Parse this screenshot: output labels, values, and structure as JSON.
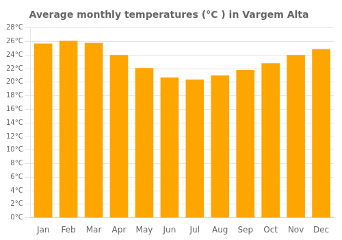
{
  "chart_data": {
    "type": "bar",
    "title": "Average monthly temperatures (°C ) in Vargem Alta",
    "categories": [
      "Jan",
      "Feb",
      "Mar",
      "Apr",
      "May",
      "Jun",
      "Jul",
      "Aug",
      "Sep",
      "Oct",
      "Nov",
      "Dec"
    ],
    "values": [
      25.7,
      26.1,
      25.8,
      24.0,
      22.1,
      20.7,
      20.4,
      21.0,
      21.8,
      22.8,
      24.0,
      24.9
    ],
    "color": "#FFA500",
    "ylim": [
      0,
      28
    ],
    "yticks": [
      {
        "value": 0,
        "label": "0°C"
      },
      {
        "value": 2,
        "label": "2°C"
      },
      {
        "value": 4,
        "label": "4°C"
      },
      {
        "value": 6,
        "label": "6°C"
      },
      {
        "value": 8,
        "label": "8°C"
      },
      {
        "value": 10,
        "label": "10°C"
      },
      {
        "value": 12,
        "label": "12°C"
      },
      {
        "value": 14,
        "label": "14°C"
      },
      {
        "value": 16,
        "label": "16°C"
      },
      {
        "value": 18,
        "label": "18°C"
      },
      {
        "value": 20,
        "label": "20°C"
      },
      {
        "value": 22,
        "label": "22°C"
      },
      {
        "value": 24,
        "label": "24°C"
      },
      {
        "value": 26,
        "label": "26°C"
      },
      {
        "value": 28,
        "label": "28°C"
      }
    ],
    "grid": true
  }
}
